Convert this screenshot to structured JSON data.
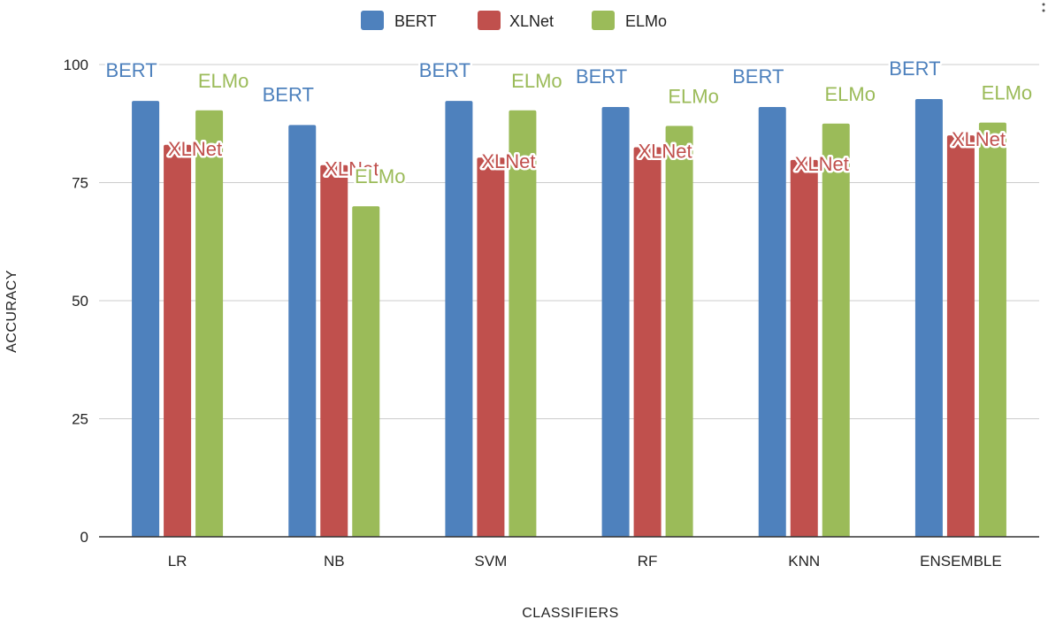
{
  "chart_data": {
    "type": "bar",
    "categories": [
      "LR",
      "NB",
      "SVM",
      "RF",
      "KNN",
      "ENSEMBLE"
    ],
    "series": [
      {
        "name": "BERT",
        "color": "#4e81bd",
        "values": [
          92.3,
          87.2,
          92.3,
          91.0,
          91.0,
          92.7
        ]
      },
      {
        "name": "XLNet",
        "color": "#c0504d",
        "values": [
          83.0,
          78.7,
          80.3,
          82.5,
          79.8,
          85.0
        ]
      },
      {
        "name": "ELMo",
        "color": "#9bbb59",
        "values": [
          90.3,
          70.0,
          90.3,
          87.0,
          87.5,
          87.7
        ]
      }
    ],
    "xlabel": "CLASSIFIERS",
    "ylabel": "ACCURACY",
    "ylim": [
      0,
      100
    ],
    "yticks": [
      0,
      25,
      50,
      75,
      100
    ],
    "grid": true,
    "legend": "top-center"
  }
}
